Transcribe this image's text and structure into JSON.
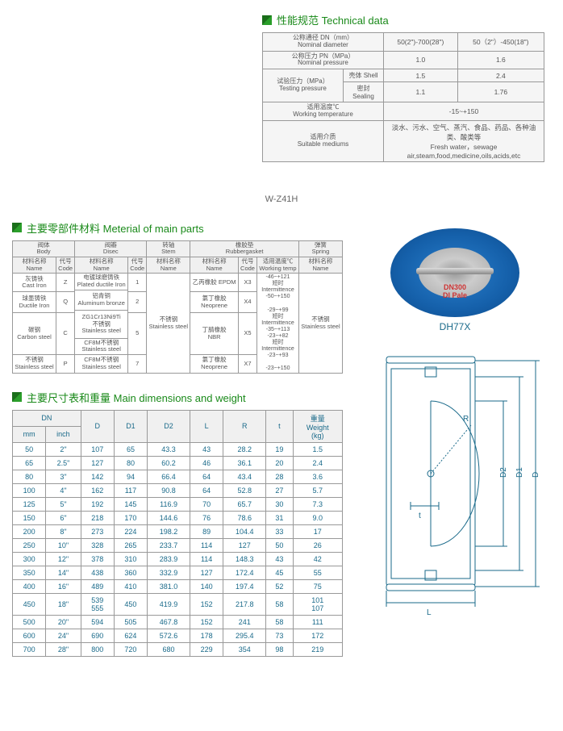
{
  "tech": {
    "title": "性能规范 Technical data",
    "rows": [
      {
        "label_cn": "公称通径 DN（mm）",
        "label_en": "Nominal diameter",
        "v1": "50(2\")-700(28\")",
        "v2": "50（2\"）-450(18\")"
      },
      {
        "label_cn": "公称压力 PN（MPa）",
        "label_en": "Nominal pressure",
        "v1": "1.0",
        "v2": "1.6"
      }
    ],
    "test_label_cn": "试验压力（MPa）",
    "test_label_en": "Testing pressure",
    "shell_cn": "壳体 Shell",
    "shell_v1": "1.5",
    "shell_v2": "2.4",
    "seal_cn": "密封 Sealing",
    "seal_v1": "1.1",
    "seal_v2": "1.76",
    "temp_label_cn": "适用温度℃",
    "temp_label_en": "Working temperature",
    "temp_v": "-15~+150",
    "medium_label_cn": "适用介质",
    "medium_label_en": "Suitable mediums",
    "medium_cn": "淡水、污水、空气、蒸汽、食品、药品、各种油类、酸类等",
    "medium_en": "Fresh water，sewage air,steam,food,medicine,oils,acids,etc"
  },
  "model": "W-Z41H",
  "materials": {
    "title": "主要零部件材料 Meterial of main parts",
    "headers": {
      "body": "阀体\nBody",
      "disc": "阀瓣\nDisec",
      "stem": "转轴\nStem",
      "gasket": "橡胶垫\nRubbergasket",
      "spring": "弹簧\nSpring",
      "name": "材料名称\nName",
      "code": "代号\nCode",
      "temp": "适用温度℃\nWorking temp"
    },
    "body": [
      {
        "name_cn": "灰铸铁",
        "name_en": "Cast Iron",
        "code": "Z"
      },
      {
        "name_cn": "球墨铸铁",
        "name_en": "Ductile Iron",
        "code": "Q"
      },
      {
        "name_cn": "碳钢",
        "name_en": "Carbon steel",
        "code": "C"
      },
      {
        "name_cn": "不锈钢",
        "name_en": "Stainless steel",
        "code": "P"
      }
    ],
    "disc": [
      {
        "name_cn": "电镀球磨铸铁",
        "name_en": "Plated ductile Iron",
        "code": "1"
      },
      {
        "name_cn": "铝青铜",
        "name_en": "Aluminum bronze",
        "code": ""
      },
      {
        "name_cn": "ZG1Cr13Ni9Ti\n不锈钢",
        "name_en": "Stainless steel",
        "code": "2"
      },
      {
        "name_cn": "CF8M不锈钢",
        "name_en": "Stainless steel",
        "code": "5"
      },
      {
        "name_cn": "CF8M不锈钢",
        "name_en": "Stainless steel",
        "code": "7"
      }
    ],
    "stem": {
      "name_cn": "不锈钢",
      "name_en": "Stainless steel"
    },
    "gasket": [
      {
        "name_cn": "乙丙橡胶 EPDM",
        "code": "X3"
      },
      {
        "name_cn": "氯丁橡胶\nNeoprene",
        "code": "X4"
      },
      {
        "name_cn": "丁腈橡胶\nNBR",
        "code": "X5"
      },
      {
        "name_cn": "氯丁橡胶\nNeoprene",
        "code": "X7"
      }
    ],
    "temps": "-46~+121\n短时\nIntermittence\n-50~+150\n\n-29~+99\n短时\nIntermittence\n-35~+113\n-23~+82\n短时\nIntermittence\n-23~+93\n\n-23~+150",
    "spring": {
      "name_cn": "不锈钢",
      "name_en": "Stainless steel"
    }
  },
  "valve_model": "DH77X",
  "valve_brand": "DN300\nDI Pale",
  "dimensions": {
    "title": "主要尺寸表和重量 Main dimensions and weight",
    "headers": [
      "DN",
      "D",
      "D1",
      "D2",
      "L",
      "R",
      "t",
      "重量\nWeight\n(kg)"
    ],
    "subheaders": [
      "mm",
      "inch"
    ],
    "rows": [
      [
        "50",
        "2\"",
        "107",
        "65",
        "43.3",
        "43",
        "28.2",
        "19",
        "1.5"
      ],
      [
        "65",
        "2.5\"",
        "127",
        "80",
        "60.2",
        "46",
        "36.1",
        "20",
        "2.4"
      ],
      [
        "80",
        "3\"",
        "142",
        "94",
        "66.4",
        "64",
        "43.4",
        "28",
        "3.6"
      ],
      [
        "100",
        "4\"",
        "162",
        "117",
        "90.8",
        "64",
        "52.8",
        "27",
        "5.7"
      ],
      [
        "125",
        "5\"",
        "192",
        "145",
        "116.9",
        "70",
        "65.7",
        "30",
        "7.3"
      ],
      [
        "150",
        "6\"",
        "218",
        "170",
        "144.6",
        "76",
        "78.6",
        "31",
        "9.0"
      ],
      [
        "200",
        "8\"",
        "273",
        "224",
        "198.2",
        "89",
        "104.4",
        "33",
        "17"
      ],
      [
        "250",
        "10\"",
        "328",
        "265",
        "233.7",
        "114",
        "127",
        "50",
        "26"
      ],
      [
        "300",
        "12\"",
        "378",
        "310",
        "283.9",
        "114",
        "148.3",
        "43",
        "42"
      ],
      [
        "350",
        "14\"",
        "438",
        "360",
        "332.9",
        "127",
        "172.4",
        "45",
        "55"
      ],
      [
        "400",
        "16\"",
        "489",
        "410",
        "381.0",
        "140",
        "197.4",
        "52",
        "75"
      ],
      [
        "450",
        "18\"",
        "539\n555",
        "450",
        "419.9",
        "152",
        "217.8",
        "58",
        "101\n107"
      ],
      [
        "500",
        "20\"",
        "594",
        "505",
        "467.8",
        "152",
        "241",
        "58",
        "111"
      ],
      [
        "600",
        "24\"",
        "690",
        "624",
        "572.6",
        "178",
        "295.4",
        "73",
        "172"
      ],
      [
        "700",
        "28\"",
        "800",
        "720",
        "680",
        "229",
        "354",
        "98",
        "219"
      ]
    ]
  },
  "diagram_labels": {
    "D": "D",
    "D1": "D1",
    "D2": "D2",
    "L": "L",
    "R": "R",
    "t": "t"
  }
}
